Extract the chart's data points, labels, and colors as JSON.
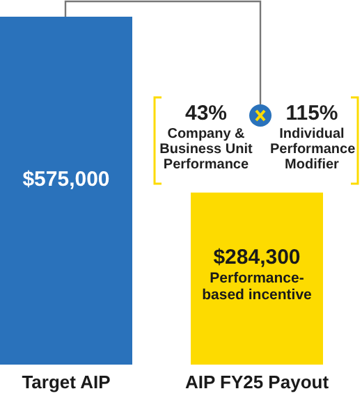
{
  "chart_data": {
    "type": "bar",
    "categories": [
      "Target AIP",
      "AIP FY25 Payout"
    ],
    "values": [
      575000,
      284300
    ],
    "colors": [
      "#2a72bb",
      "#fddb00"
    ],
    "value_labels": [
      "$575,000",
      "$284,300"
    ],
    "annotations": [
      "43%",
      "Company & Business Unit Performance",
      "115%",
      "Individual Performance Modifier",
      "Performance-based incentive"
    ]
  }
}
